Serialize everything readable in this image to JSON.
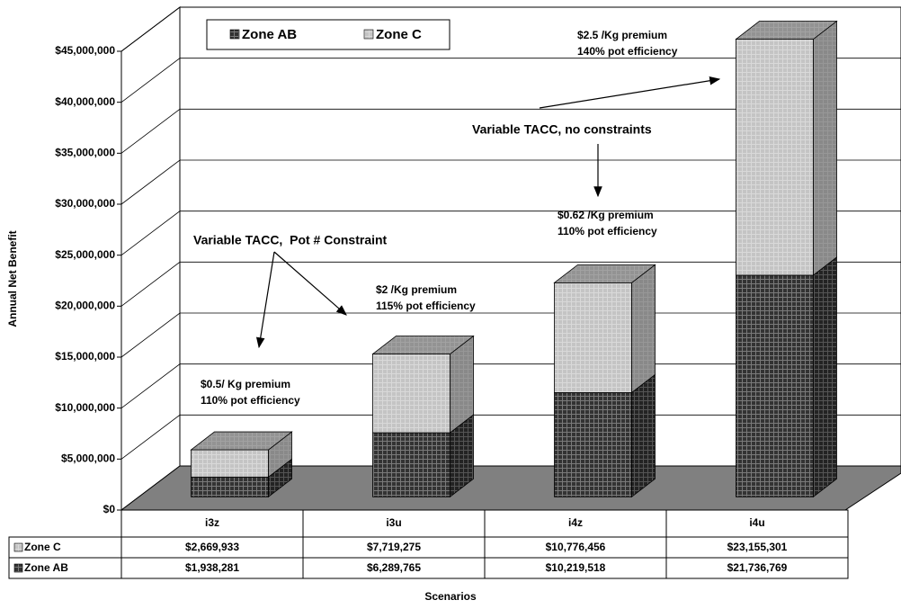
{
  "chart_data": {
    "type": "bar3d_stacked",
    "y_label": "Annual Net Benefit",
    "x_label": "Scenarios",
    "categories": [
      "i3z",
      "i3u",
      "i4z",
      "i4u"
    ],
    "series": [
      {
        "name": "Zone AB",
        "color": "#333333",
        "values": [
          1938281,
          6289765,
          10219518,
          21736769
        ],
        "value_labels": [
          "$1,938,281",
          "$6,289,765",
          "$10,219,518",
          "$21,736,769"
        ]
      },
      {
        "name": "Zone C",
        "color": "#c4c4c4",
        "values": [
          2669933,
          7719275,
          10776456,
          23155301
        ],
        "value_labels": [
          "$2,669,933",
          "$7,719,275",
          "$10,776,456",
          "$23,155,301"
        ]
      }
    ],
    "ylim": [
      0,
      45000000
    ],
    "yticks": [
      {
        "value": 0,
        "label": "$0"
      },
      {
        "value": 5000000,
        "label": "$5,000,000"
      },
      {
        "value": 10000000,
        "label": "$10,000,000"
      },
      {
        "value": 15000000,
        "label": "$15,000,000"
      },
      {
        "value": 20000000,
        "label": "$20,000,000"
      },
      {
        "value": 25000000,
        "label": "$25,000,000"
      },
      {
        "value": 30000000,
        "label": "$30,000,000"
      },
      {
        "value": 35000000,
        "label": "$35,000,000"
      },
      {
        "value": 40000000,
        "label": "$40,000,000"
      },
      {
        "value": 45000000,
        "label": "$45,000,000"
      }
    ],
    "grid": true,
    "annotations": [
      {
        "lines": [
          "$0.5/ Kg premium",
          "110% pot efficiency"
        ]
      },
      {
        "lines": [
          "$2 /Kg premium",
          "115% pot efficiency"
        ]
      },
      {
        "lines": [
          "$0.62 /Kg premium",
          "110% pot efficiency"
        ]
      },
      {
        "lines": [
          "$2.5 /Kg premium",
          "140% pot efficiency"
        ]
      }
    ],
    "callouts": [
      "Variable TACC,  Pot # Constraint",
      "Variable TACC, no constraints"
    ]
  }
}
